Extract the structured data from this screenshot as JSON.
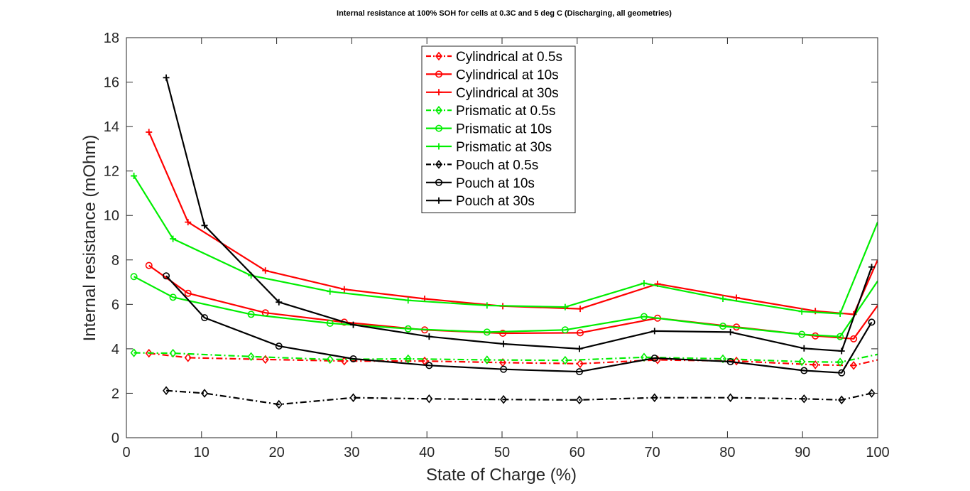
{
  "chart_data": {
    "type": "line",
    "title": "Internal resistance at 100% SOH for cells at 0.3C and 5 deg C (Discharging, all geometries)",
    "xlabel": "State of Charge (%)",
    "ylabel": "Internal resistance (mOhm)",
    "xlim": [
      0,
      100
    ],
    "ylim": [
      0,
      18
    ],
    "xticks": [
      0,
      10,
      20,
      30,
      40,
      50,
      60,
      70,
      80,
      90,
      100
    ],
    "yticks": [
      0,
      2,
      4,
      6,
      8,
      10,
      12,
      14,
      16,
      18
    ],
    "grid": false,
    "legend_position": "top-center",
    "series": [
      {
        "name": "Cylindrical at 0.5s",
        "color": "#ff0000",
        "dash": "dashdot",
        "marker": "diamond",
        "x": [
          3.0,
          8.2,
          18.5,
          29.0,
          39.7,
          50.1,
          60.4,
          70.7,
          81.2,
          91.7,
          96.8,
          100
        ],
        "y": [
          3.8,
          3.6,
          3.52,
          3.45,
          3.45,
          3.38,
          3.33,
          3.5,
          3.45,
          3.28,
          3.25,
          3.5
        ]
      },
      {
        "name": "Cylindrical at 10s",
        "color": "#ff0000",
        "dash": "solid",
        "marker": "circle",
        "x": [
          3.0,
          8.2,
          18.5,
          29.0,
          39.7,
          50.1,
          60.4,
          70.7,
          81.2,
          91.7,
          96.8,
          100
        ],
        "y": [
          7.75,
          6.5,
          5.62,
          5.2,
          4.85,
          4.7,
          4.72,
          5.38,
          4.98,
          4.58,
          4.45,
          5.95
        ]
      },
      {
        "name": "Cylindrical at 30s",
        "color": "#ff0000",
        "dash": "solid",
        "marker": "plus",
        "x": [
          3.0,
          8.2,
          18.5,
          29.0,
          39.7,
          50.1,
          60.4,
          70.7,
          81.2,
          91.7,
          96.8,
          100
        ],
        "y": [
          13.75,
          9.7,
          7.52,
          6.68,
          6.25,
          5.92,
          5.8,
          6.92,
          6.3,
          5.7,
          5.55,
          8.0
        ]
      },
      {
        "name": "Prismatic at 0.5s",
        "color": "#00ee00",
        "dash": "dashdot",
        "marker": "diamond",
        "x": [
          1.0,
          6.2,
          16.6,
          27.1,
          37.5,
          48.0,
          58.4,
          68.9,
          79.4,
          89.9,
          95.0,
          100
        ],
        "y": [
          3.82,
          3.8,
          3.65,
          3.52,
          3.55,
          3.5,
          3.48,
          3.62,
          3.55,
          3.42,
          3.4,
          3.75
        ]
      },
      {
        "name": "Prismatic at 10s",
        "color": "#00ee00",
        "dash": "solid",
        "marker": "circle",
        "x": [
          1.0,
          6.2,
          16.6,
          27.1,
          37.5,
          48.0,
          58.4,
          68.9,
          79.4,
          89.9,
          95.0,
          100
        ],
        "y": [
          7.25,
          6.32,
          5.55,
          5.15,
          4.9,
          4.75,
          4.85,
          5.45,
          5.02,
          4.65,
          4.55,
          7.05
        ]
      },
      {
        "name": "Prismatic at 30s",
        "color": "#00ee00",
        "dash": "solid",
        "marker": "plus",
        "x": [
          1.0,
          6.2,
          16.6,
          27.1,
          37.5,
          48.0,
          58.4,
          68.9,
          79.4,
          89.9,
          95.0,
          100
        ],
        "y": [
          11.78,
          8.95,
          7.3,
          6.58,
          6.18,
          5.95,
          5.88,
          6.95,
          6.25,
          5.68,
          5.58,
          9.7
        ]
      },
      {
        "name": "Pouch at 0.5s",
        "color": "#000000",
        "dash": "dashdot",
        "marker": "diamond",
        "x": [
          5.3,
          10.4,
          20.3,
          30.2,
          40.3,
          50.2,
          60.3,
          70.3,
          80.4,
          90.2,
          95.2,
          99.2
        ],
        "y": [
          2.12,
          2.0,
          1.5,
          1.8,
          1.75,
          1.72,
          1.7,
          1.8,
          1.8,
          1.75,
          1.7,
          2.0
        ]
      },
      {
        "name": "Pouch at 10s",
        "color": "#000000",
        "dash": "solid",
        "marker": "circle",
        "x": [
          5.3,
          10.4,
          20.3,
          30.2,
          40.3,
          50.2,
          60.3,
          70.3,
          80.4,
          90.2,
          95.2,
          99.2
        ],
        "y": [
          7.28,
          5.4,
          4.12,
          3.55,
          3.25,
          3.08,
          2.97,
          3.58,
          3.42,
          3.02,
          2.92,
          5.2
        ]
      },
      {
        "name": "Pouch at 30s",
        "color": "#000000",
        "dash": "solid",
        "marker": "plus",
        "x": [
          5.3,
          10.4,
          20.3,
          30.2,
          40.3,
          50.2,
          60.3,
          70.3,
          80.4,
          90.2,
          95.2,
          99.2
        ],
        "y": [
          16.2,
          9.55,
          6.1,
          5.08,
          4.55,
          4.22,
          4.0,
          4.8,
          4.75,
          4.02,
          3.9,
          7.68
        ]
      }
    ]
  }
}
